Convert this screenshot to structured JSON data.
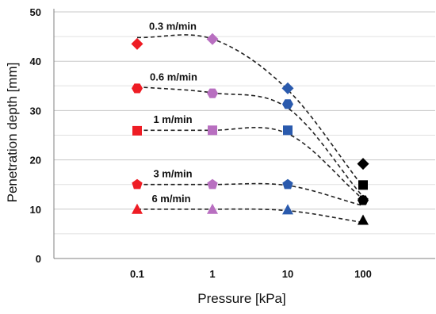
{
  "chart_data": {
    "type": "scatter",
    "xlabel": "Pressure [kPa]",
    "ylabel": "Penetration depth [mm]",
    "x_scale": "log",
    "x": [
      0.1,
      1,
      10,
      100
    ],
    "x_tick_labels": [
      "0.1",
      "1",
      "10",
      "100"
    ],
    "ylim": [
      0,
      50
    ],
    "y_ticks": [
      0,
      10,
      20,
      30,
      40,
      50
    ],
    "grid": "horizontal",
    "series": [
      {
        "name": "0.3 m/min",
        "values": [
          43.5,
          44.5,
          34.5,
          19.2
        ],
        "marker": "diamond"
      },
      {
        "name": "0.6 m/min",
        "values": [
          34.5,
          33.5,
          31.3,
          11.8
        ],
        "marker": "hexagon"
      },
      {
        "name": "1 m/min",
        "values": [
          25.9,
          26.0,
          26.0,
          14.9
        ],
        "marker": "square"
      },
      {
        "name": "3 m/min",
        "values": [
          15.0,
          15.0,
          15.0,
          11.8
        ],
        "marker": "pentagon"
      },
      {
        "name": "6 m/min",
        "values": [
          10.0,
          10.0,
          9.9,
          7.8
        ],
        "marker": "triangle"
      }
    ],
    "point_colors": [
      "#ee1c24",
      "#b86fc0",
      "#2a5aad",
      "#000000"
    ],
    "fit_curves": [
      [
        44.8,
        44.5,
        34.2,
        14.5
      ],
      [
        34.8,
        33.6,
        30.5,
        12.5
      ],
      [
        26.0,
        26.0,
        25.3,
        12.0
      ],
      [
        15.0,
        15.0,
        14.8,
        10.7
      ],
      [
        10.0,
        10.0,
        9.7,
        7.3
      ]
    ]
  }
}
